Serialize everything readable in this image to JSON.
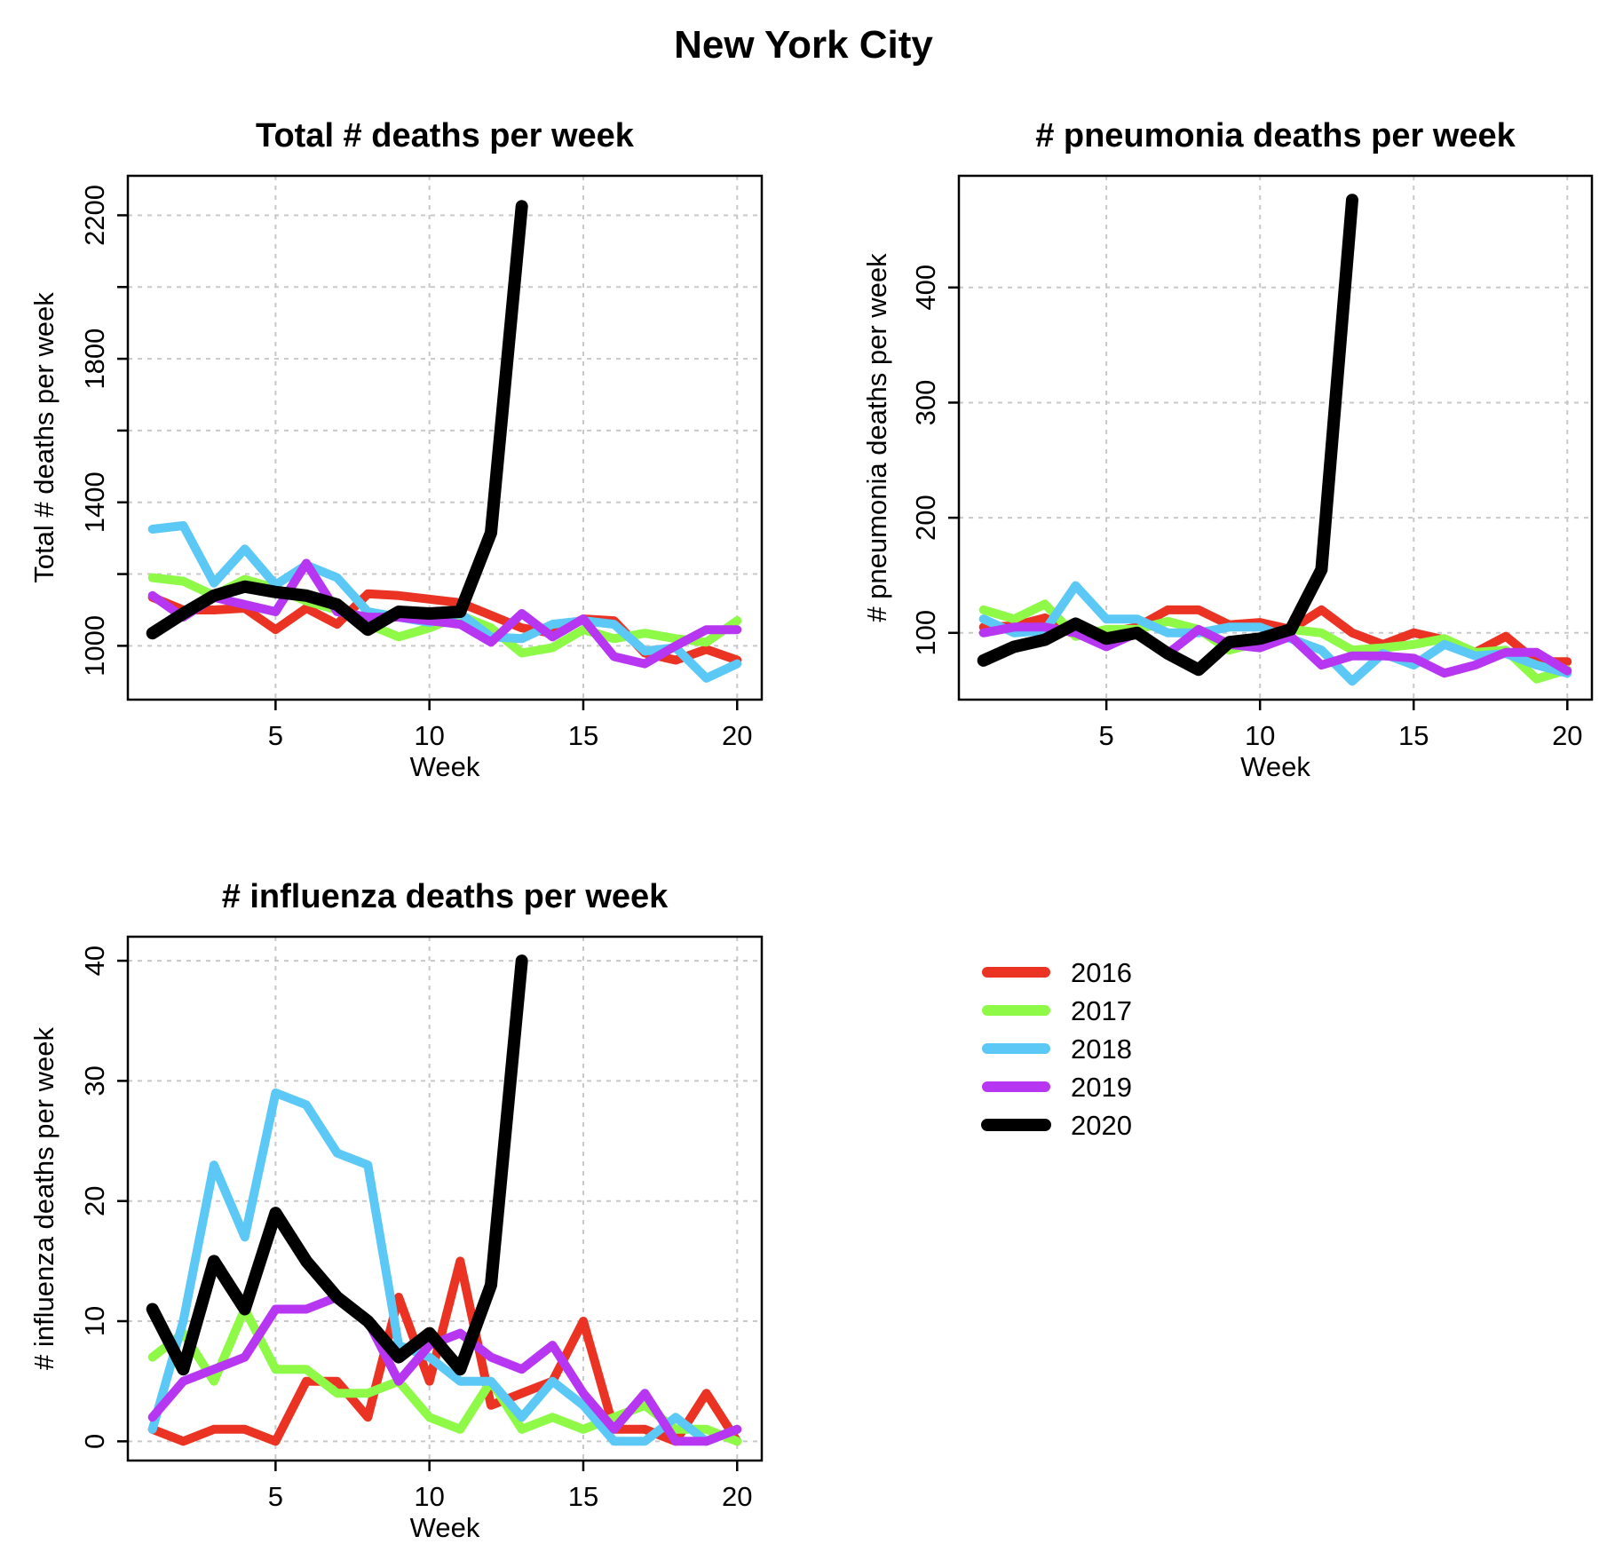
{
  "main_title": "New York City",
  "legend": [
    {
      "label": "2016",
      "color": "#EA3323"
    },
    {
      "label": "2017",
      "color": "#8EF947"
    },
    {
      "label": "2018",
      "color": "#5BC8F5"
    },
    {
      "label": "2019",
      "color": "#B636F2"
    },
    {
      "label": "2020",
      "color": "#000000"
    }
  ],
  "chart_data": [
    {
      "type": "line",
      "title": "Total # deaths per week",
      "xlabel": "Week",
      "ylabel": "Total # deaths per week",
      "xlim": [
        0.2,
        20.8
      ],
      "ylim": [
        850,
        2310
      ],
      "xticks": [
        5,
        10,
        15,
        20
      ],
      "yticks": [
        1000,
        1200,
        1400,
        1600,
        1800,
        2000,
        2200
      ],
      "ytick_labels": [
        "1000",
        "",
        "1400",
        "",
        "1800",
        "",
        "2200"
      ],
      "grid": true,
      "series": [
        {
          "name": "2016",
          "x": [
            1,
            2,
            3,
            4,
            5,
            6,
            7,
            8,
            9,
            10,
            11,
            12,
            13,
            14,
            15,
            16,
            17,
            18,
            19,
            20
          ],
          "values": [
            1135,
            1100,
            1100,
            1105,
            1045,
            1105,
            1060,
            1145,
            1140,
            1130,
            1120,
            1085,
            1050,
            1035,
            1075,
            1070,
            980,
            960,
            990,
            960
          ]
        },
        {
          "name": "2017",
          "x": [
            1,
            2,
            3,
            4,
            5,
            6,
            7,
            8,
            9,
            10,
            11,
            12,
            13,
            14,
            15,
            16,
            17,
            18,
            19,
            20
          ],
          "values": [
            1190,
            1180,
            1140,
            1185,
            1160,
            1125,
            1100,
            1060,
            1025,
            1050,
            1085,
            1050,
            980,
            995,
            1045,
            1020,
            1035,
            1020,
            1010,
            1070
          ]
        },
        {
          "name": "2018",
          "x": [
            1,
            2,
            3,
            4,
            5,
            6,
            7,
            8,
            9,
            10,
            11,
            12,
            13,
            14,
            15,
            16,
            17,
            18,
            19,
            20
          ],
          "values": [
            1325,
            1335,
            1175,
            1270,
            1170,
            1225,
            1190,
            1095,
            1080,
            1065,
            1090,
            1025,
            1020,
            1060,
            1070,
            1060,
            985,
            995,
            910,
            950
          ]
        },
        {
          "name": "2019",
          "x": [
            1,
            2,
            3,
            4,
            5,
            6,
            7,
            8,
            9,
            10,
            11,
            12,
            13,
            14,
            15,
            16,
            17,
            18,
            19,
            20
          ],
          "values": [
            1140,
            1080,
            1135,
            1115,
            1095,
            1230,
            1095,
            1080,
            1080,
            1070,
            1060,
            1010,
            1090,
            1025,
            1075,
            970,
            950,
            1000,
            1045,
            1045
          ]
        },
        {
          "name": "2020",
          "x": [
            1,
            2,
            3,
            4,
            5,
            6,
            7,
            8,
            9,
            10,
            11,
            12,
            13
          ],
          "values": [
            1035,
            1090,
            1140,
            1165,
            1150,
            1140,
            1115,
            1045,
            1095,
            1090,
            1095,
            1315,
            2225
          ]
        }
      ]
    },
    {
      "type": "line",
      "title": "# pneumonia deaths per week",
      "xlabel": "Week",
      "ylabel": "# pneumonia deaths per week",
      "xlim": [
        0.2,
        20.8
      ],
      "ylim": [
        42,
        497
      ],
      "xticks": [
        5,
        10,
        15,
        20
      ],
      "yticks": [
        100,
        200,
        300,
        400
      ],
      "ytick_labels": [
        "100",
        "200",
        "300",
        "400"
      ],
      "grid": true,
      "series": [
        {
          "name": "2016",
          "x": [
            1,
            2,
            3,
            4,
            5,
            6,
            7,
            8,
            9,
            10,
            11,
            12,
            13,
            14,
            15,
            16,
            17,
            18,
            19,
            20
          ],
          "values": [
            105,
            106,
            113,
            98,
            100,
            105,
            120,
            120,
            107,
            109,
            103,
            120,
            100,
            90,
            100,
            94,
            83,
            97,
            75,
            75
          ]
        },
        {
          "name": "2017",
          "x": [
            1,
            2,
            3,
            4,
            5,
            6,
            7,
            8,
            9,
            10,
            11,
            12,
            13,
            14,
            15,
            16,
            17,
            18,
            19,
            20
          ],
          "values": [
            120,
            112,
            125,
            97,
            103,
            103,
            110,
            103,
            85,
            92,
            103,
            100,
            85,
            87,
            90,
            95,
            83,
            85,
            60,
            68
          ]
        },
        {
          "name": "2018",
          "x": [
            1,
            2,
            3,
            4,
            5,
            6,
            7,
            8,
            9,
            10,
            11,
            12,
            13,
            14,
            15,
            16,
            17,
            18,
            19,
            20
          ],
          "values": [
            112,
            100,
            102,
            141,
            112,
            112,
            100,
            100,
            105,
            105,
            95,
            85,
            58,
            82,
            72,
            90,
            80,
            82,
            72,
            65
          ]
        },
        {
          "name": "2019",
          "x": [
            1,
            2,
            3,
            4,
            5,
            6,
            7,
            8,
            9,
            10,
            11,
            12,
            13,
            14,
            15,
            16,
            17,
            18,
            19,
            20
          ],
          "values": [
            100,
            105,
            105,
            100,
            88,
            100,
            82,
            103,
            90,
            87,
            97,
            72,
            80,
            80,
            78,
            65,
            72,
            83,
            83,
            67
          ]
        },
        {
          "name": "2020",
          "x": [
            1,
            2,
            3,
            4,
            5,
            6,
            7,
            8,
            9,
            10,
            11,
            12,
            13
          ],
          "values": [
            76,
            88,
            94,
            108,
            95,
            100,
            82,
            68,
            92,
            95,
            103,
            155,
            476
          ]
        }
      ]
    },
    {
      "type": "line",
      "title": "# influenza deaths per week",
      "xlabel": "Week",
      "ylabel": "# influenza deaths per week",
      "xlim": [
        0.2,
        20.8
      ],
      "ylim": [
        -1.6,
        42.0
      ],
      "xticks": [
        5,
        10,
        15,
        20
      ],
      "yticks": [
        0,
        10,
        20,
        30,
        40
      ],
      "ytick_labels": [
        "0",
        "10",
        "20",
        "30",
        "40"
      ],
      "grid": true,
      "series": [
        {
          "name": "2016",
          "x": [
            1,
            2,
            3,
            4,
            5,
            6,
            7,
            8,
            9,
            10,
            11,
            12,
            13,
            14,
            15,
            16,
            17,
            18,
            19,
            20
          ],
          "values": [
            1,
            0,
            1,
            1,
            0,
            5,
            5,
            2,
            12,
            5,
            15,
            3,
            4,
            5,
            10,
            1,
            1,
            0,
            4,
            0
          ]
        },
        {
          "name": "2017",
          "x": [
            1,
            2,
            3,
            4,
            5,
            6,
            7,
            8,
            9,
            10,
            11,
            12,
            13,
            14,
            15,
            16,
            17,
            18,
            19,
            20
          ],
          "values": [
            7,
            9,
            5,
            11,
            6,
            6,
            4,
            4,
            5,
            2,
            1,
            5,
            1,
            2,
            1,
            2,
            3,
            1,
            1,
            0
          ]
        },
        {
          "name": "2018",
          "x": [
            1,
            2,
            3,
            4,
            5,
            6,
            7,
            8,
            9,
            10,
            11,
            12,
            13,
            14,
            15,
            16,
            17,
            18,
            19,
            20
          ],
          "values": [
            1,
            10,
            23,
            17,
            29,
            28,
            24,
            23,
            8,
            7,
            5,
            5,
            2,
            5,
            3,
            0,
            0,
            2,
            0,
            1
          ]
        },
        {
          "name": "2019",
          "x": [
            1,
            2,
            3,
            4,
            5,
            6,
            7,
            8,
            9,
            10,
            11,
            12,
            13,
            14,
            15,
            16,
            17,
            18,
            19,
            20
          ],
          "values": [
            2,
            5,
            6,
            7,
            11,
            11,
            12,
            10,
            5,
            8,
            9,
            7,
            6,
            8,
            4,
            1,
            4,
            0,
            0,
            1
          ]
        },
        {
          "name": "2020",
          "x": [
            1,
            2,
            3,
            4,
            5,
            6,
            7,
            8,
            9,
            10,
            11,
            12,
            13
          ],
          "values": [
            11,
            6,
            15,
            11,
            19,
            15,
            12,
            10,
            7,
            9,
            6,
            13,
            40
          ]
        }
      ]
    }
  ]
}
